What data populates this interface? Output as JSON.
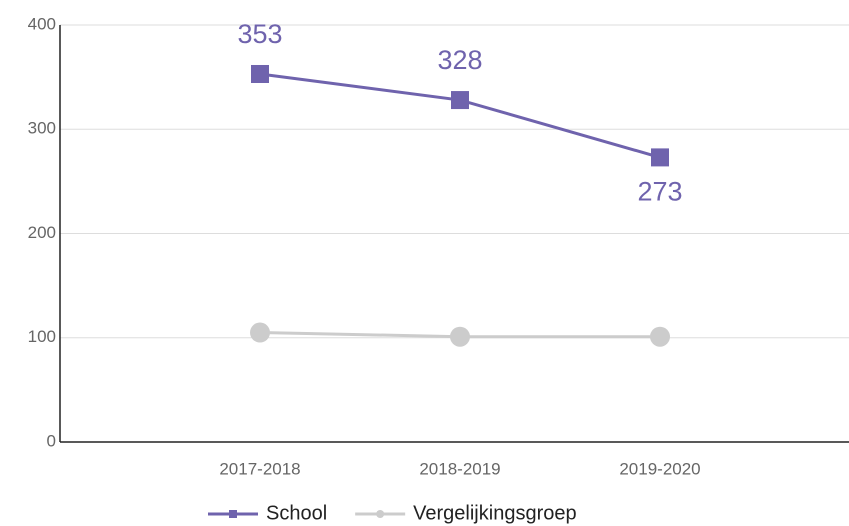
{
  "chart_data": {
    "type": "line",
    "categories": [
      "2017-2018",
      "2018-2019",
      "2019-2020"
    ],
    "series": [
      {
        "name": "School",
        "color": "#6f63ad",
        "marker": "square",
        "values": [
          353,
          328,
          273
        ]
      },
      {
        "name": "Vergelijkingsgroep",
        "color": "#cccccc",
        "marker": "circle",
        "values": [
          105,
          101,
          101
        ]
      }
    ],
    "ylim": [
      0,
      400
    ],
    "yticks": [
      0,
      100,
      200,
      300,
      400
    ],
    "grid": true,
    "legend": "bottom"
  }
}
